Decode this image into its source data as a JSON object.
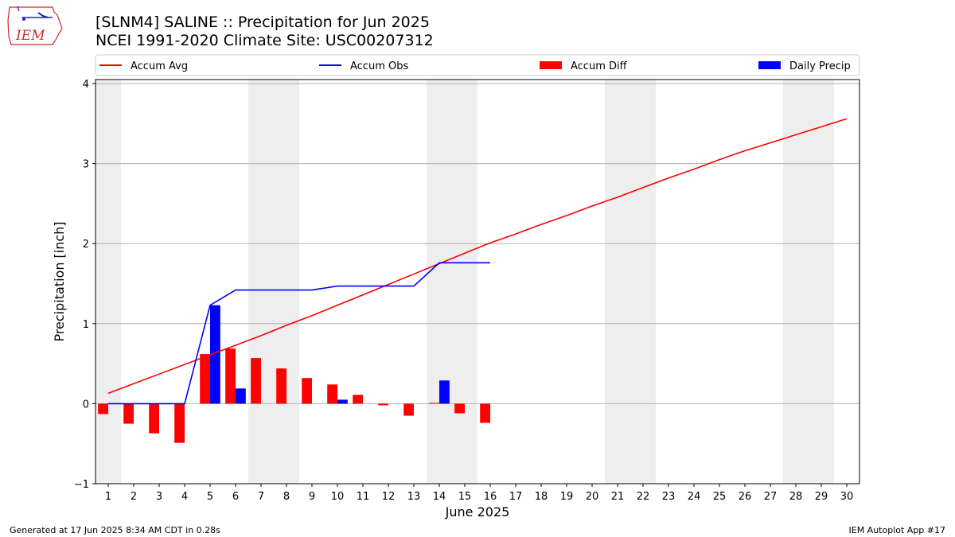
{
  "header": {
    "title_line1": "[SLNM4] SALINE :: Precipitation for Jun 2025",
    "title_line2": "NCEI 1991-2020 Climate Site: USC00207312",
    "logo_text": "IEM"
  },
  "footer": {
    "generated": "Generated at 17 Jun 2025 8:34 AM CDT in 0.28s",
    "app": "IEM Autoplot App #17"
  },
  "chart_data": {
    "type": "bar",
    "xlabel": "June 2025",
    "ylabel": "Precipitation [inch]",
    "ylim": [
      -1,
      4.05
    ],
    "yticks": [
      -1,
      0,
      1,
      2,
      3,
      4
    ],
    "xlim": [
      0.5,
      30.5
    ],
    "days": [
      1,
      2,
      3,
      4,
      5,
      6,
      7,
      8,
      9,
      10,
      11,
      12,
      13,
      14,
      15,
      16,
      17,
      18,
      19,
      20,
      21,
      22,
      23,
      24,
      25,
      26,
      27,
      28,
      29,
      30
    ],
    "weekend_days": [
      1,
      7,
      8,
      14,
      15,
      21,
      22,
      28,
      29
    ],
    "grid": "horizontal",
    "legend": {
      "placement": "top",
      "entries": [
        "Accum Avg",
        "Accum Obs",
        "Accum Diff",
        "Daily Precip"
      ]
    },
    "series": [
      {
        "name": "Accum Avg",
        "kind": "line",
        "color": "#ff0000",
        "x": [
          1,
          2,
          3,
          4,
          5,
          6,
          7,
          8,
          9,
          10,
          11,
          12,
          13,
          14,
          15,
          16,
          17,
          18,
          19,
          20,
          21,
          22,
          23,
          24,
          25,
          26,
          27,
          28,
          29,
          30
        ],
        "values": [
          0.13,
          0.25,
          0.37,
          0.49,
          0.61,
          0.73,
          0.85,
          0.98,
          1.1,
          1.23,
          1.36,
          1.49,
          1.62,
          1.75,
          1.88,
          2.01,
          2.12,
          2.24,
          2.35,
          2.47,
          2.58,
          2.7,
          2.82,
          2.93,
          3.05,
          3.16,
          3.26,
          3.36,
          3.46,
          3.56
        ]
      },
      {
        "name": "Accum Obs",
        "kind": "line",
        "color": "#0000ff",
        "x": [
          1,
          2,
          3,
          4,
          5,
          6,
          7,
          8,
          9,
          10,
          11,
          12,
          13,
          14,
          15,
          16
        ],
        "values": [
          0,
          0,
          0,
          0,
          1.23,
          1.42,
          1.42,
          1.42,
          1.42,
          1.47,
          1.47,
          1.47,
          1.47,
          1.76,
          1.76,
          1.76
        ]
      },
      {
        "name": "Accum Diff",
        "kind": "bar",
        "color": "#ff0000",
        "x": [
          1,
          2,
          3,
          4,
          5,
          6,
          7,
          8,
          9,
          10,
          11,
          12,
          13,
          14,
          15,
          16
        ],
        "values": [
          -0.13,
          -0.25,
          -0.37,
          -0.49,
          0.62,
          0.69,
          0.57,
          0.44,
          0.32,
          0.24,
          0.11,
          -0.02,
          -0.15,
          0.01,
          -0.12,
          -0.24
        ]
      },
      {
        "name": "Daily Precip",
        "kind": "bar",
        "color": "#0000ff",
        "x": [
          1,
          2,
          3,
          4,
          5,
          6,
          7,
          8,
          9,
          10,
          11,
          12,
          13,
          14,
          15,
          16
        ],
        "values": [
          0,
          0,
          0,
          0,
          1.23,
          0.19,
          0,
          0,
          0,
          0.05,
          0,
          0,
          0,
          0.29,
          0,
          0
        ]
      }
    ]
  }
}
